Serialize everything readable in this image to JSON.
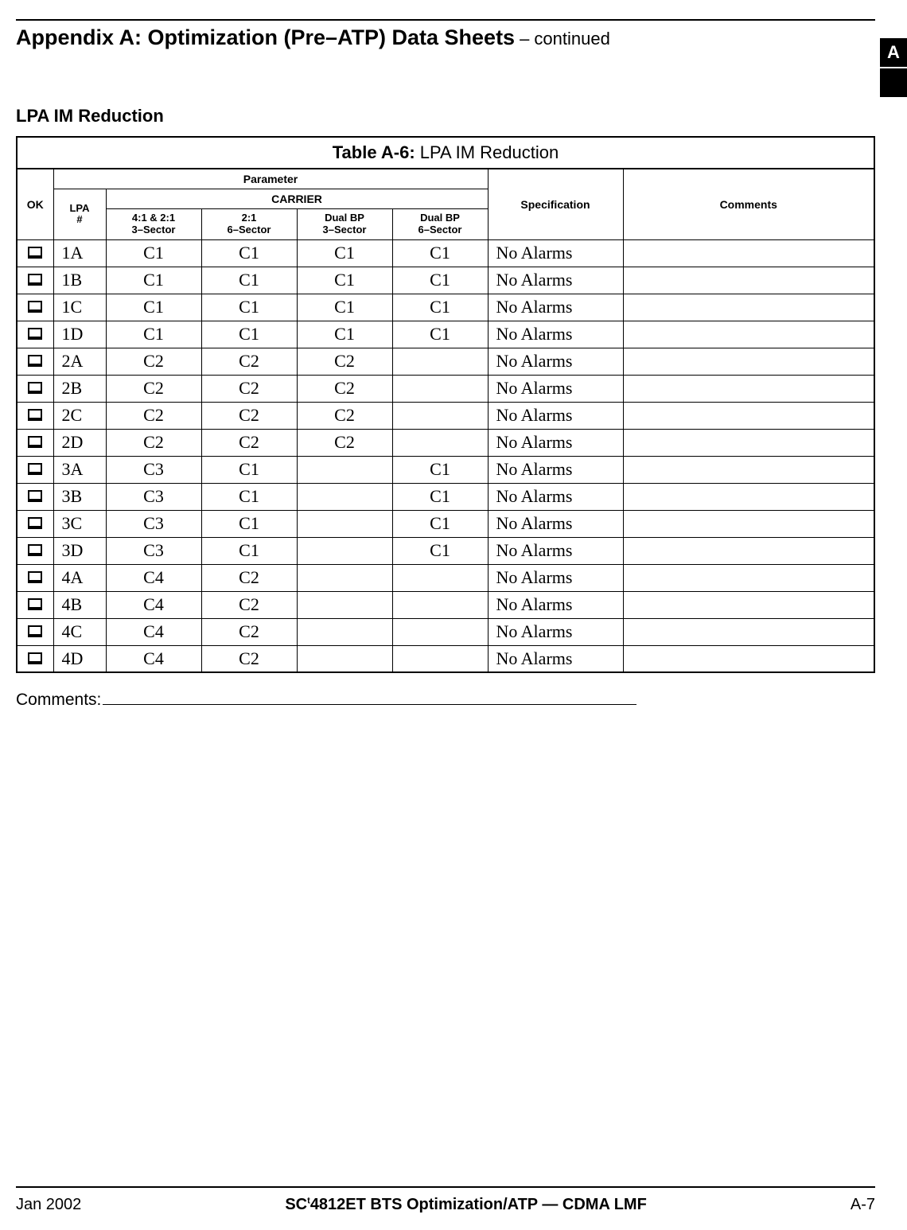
{
  "header": {
    "title": "Appendix A: Optimization (Pre–ATP) Data Sheets",
    "suffix": "– continued",
    "side_tab": "A"
  },
  "section_heading": "LPA IM Reduction",
  "table": {
    "caption_bold": "Table A-6:",
    "caption_rest": " LPA IM Reduction",
    "hdr_ok": "OK",
    "hdr_parameter": "Parameter",
    "hdr_specification": "Specification",
    "hdr_comments": "Comments",
    "hdr_lpa": "LPA\n#",
    "hdr_carrier": "CARRIER",
    "hdr_c1": "4:1 & 2:1\n3–Sector",
    "hdr_c2": "2:1\n6–Sector",
    "hdr_c3": "Dual BP\n3–Sector",
    "hdr_c4": "Dual BP\n6–Sector",
    "rows": [
      {
        "lpa": "1A",
        "c1": "C1",
        "c2": "C1",
        "c3": "C1",
        "c4": "C1",
        "spec": "No Alarms",
        "comm": ""
      },
      {
        "lpa": "1B",
        "c1": "C1",
        "c2": "C1",
        "c3": "C1",
        "c4": "C1",
        "spec": "No Alarms",
        "comm": ""
      },
      {
        "lpa": "1C",
        "c1": "C1",
        "c2": "C1",
        "c3": "C1",
        "c4": "C1",
        "spec": "No Alarms",
        "comm": ""
      },
      {
        "lpa": "1D",
        "c1": "C1",
        "c2": "C1",
        "c3": "C1",
        "c4": "C1",
        "spec": "No Alarms",
        "comm": ""
      },
      {
        "lpa": "2A",
        "c1": "C2",
        "c2": "C2",
        "c3": "C2",
        "c4": "",
        "spec": "No Alarms",
        "comm": ""
      },
      {
        "lpa": "2B",
        "c1": "C2",
        "c2": "C2",
        "c3": "C2",
        "c4": "",
        "spec": "No Alarms",
        "comm": ""
      },
      {
        "lpa": "2C",
        "c1": "C2",
        "c2": "C2",
        "c3": "C2",
        "c4": "",
        "spec": "No Alarms",
        "comm": ""
      },
      {
        "lpa": "2D",
        "c1": "C2",
        "c2": "C2",
        "c3": "C2",
        "c4": "",
        "spec": "No Alarms",
        "comm": ""
      },
      {
        "lpa": "3A",
        "c1": "C3",
        "c2": "C1",
        "c3": "",
        "c4": "C1",
        "spec": "No Alarms",
        "comm": ""
      },
      {
        "lpa": "3B",
        "c1": "C3",
        "c2": "C1",
        "c3": "",
        "c4": "C1",
        "spec": "No Alarms",
        "comm": ""
      },
      {
        "lpa": "3C",
        "c1": "C3",
        "c2": "C1",
        "c3": "",
        "c4": "C1",
        "spec": "No Alarms",
        "comm": ""
      },
      {
        "lpa": "3D",
        "c1": "C3",
        "c2": "C1",
        "c3": "",
        "c4": "C1",
        "spec": "No Alarms",
        "comm": ""
      },
      {
        "lpa": "4A",
        "c1": "C4",
        "c2": "C2",
        "c3": "",
        "c4": "",
        "spec": "No Alarms",
        "comm": ""
      },
      {
        "lpa": "4B",
        "c1": "C4",
        "c2": "C2",
        "c3": "",
        "c4": "",
        "spec": "No Alarms",
        "comm": ""
      },
      {
        "lpa": "4C",
        "c1": "C4",
        "c2": "C2",
        "c3": "",
        "c4": "",
        "spec": "No Alarms",
        "comm": ""
      },
      {
        "lpa": "4D",
        "c1": "C4",
        "c2": "C2",
        "c3": "",
        "c4": "",
        "spec": "No Alarms",
        "comm": ""
      }
    ]
  },
  "comments_label": "Comments:",
  "footer": {
    "left": "Jan 2002",
    "center_prefix": "SC",
    "center_tm": "t",
    "center_rest": "4812ET BTS Optimization/ATP — CDMA LMF",
    "right": "A-7"
  }
}
